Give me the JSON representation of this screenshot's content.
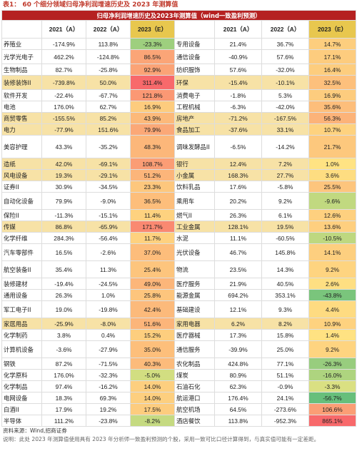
{
  "caption": "表1：  60 个细分领域归母净利润增速历史及 2023 年测算值",
  "table": {
    "title": "归母净利润增速历史及2023年测算值（wind一致盈利预测）",
    "headers": [
      "",
      "2021（A）",
      "2022（A）",
      "2023（E）",
      "",
      "2021（A）",
      "2022（A）",
      "2023（E）"
    ],
    "rows": [
      {
        "left": {
          "name": "养殖业",
          "a21": "-174.9%",
          "a22": "113.8%",
          "e23": "-23.3%"
        },
        "right": {
          "name": "专用设备",
          "a21": "21.4%",
          "a22": "36.7%",
          "e23": "14.7%"
        }
      },
      {
        "left": {
          "name": "光学光电子",
          "a21": "462.2%",
          "a22": "-124.8%",
          "e23": "86.5%"
        },
        "right": {
          "name": "通信设备",
          "a21": "-40.9%",
          "a22": "57.6%",
          "e23": "17.1%"
        }
      },
      {
        "left": {
          "name": "生物制品",
          "a21": "82.7%",
          "a22": "-25.8%",
          "e23": "92.9%"
        },
        "right": {
          "name": "纺织服饰",
          "a21": "57.6%",
          "a22": "-32.0%",
          "e23": "16.4%"
        }
      },
      {
        "left": {
          "name": "装修装饰II",
          "a21": "-739.8%",
          "a22": "50.0%",
          "e23": "311.4%"
        },
        "right": {
          "name": "环保",
          "a21": "-15.4%",
          "a22": "-10.1%",
          "e23": "32.5%"
        }
      },
      {
        "left": {
          "name": "软件开发",
          "a21": "-22.4%",
          "a22": "-67.7%",
          "e23": "121.8%"
        },
        "right": {
          "name": "消费电子",
          "a21": "-1.8%",
          "a22": "5.3%",
          "e23": "16.9%"
        }
      },
      {
        "left": {
          "name": "电池",
          "a21": "176.0%",
          "a22": "62.7%",
          "e23": "16.9%"
        },
        "right": {
          "name": "工程机械",
          "a21": "-6.3%",
          "a22": "-42.0%",
          "e23": "35.6%"
        }
      },
      {
        "left": {
          "name": "商贸零售",
          "a21": "-155.5%",
          "a22": "85.2%",
          "e23": "43.9%"
        },
        "right": {
          "name": "房地产",
          "a21": "-71.2%",
          "a22": "-167.5%",
          "e23": "56.3%"
        }
      },
      {
        "left": {
          "name": "电力",
          "a21": "-77.9%",
          "a22": "151.6%",
          "e23": "79.9%"
        },
        "right": {
          "name": "食品加工",
          "a21": "-37.6%",
          "a22": "33.1%",
          "e23": "10.7%"
        }
      },
      {
        "left": {
          "name": "美容护理",
          "a21": "43.3%",
          "a22": "-35.2%",
          "e23": "48.3%"
        },
        "right": {
          "name": "调味发酵品II",
          "a21": "-6.5%",
          "a22": "-14.2%",
          "e23": "21.7%"
        }
      },
      {
        "left": {
          "name": "造纸",
          "a21": "42.0%",
          "a22": "-69.1%",
          "e23": "108.7%"
        },
        "right": {
          "name": "银行",
          "a21": "12.4%",
          "a22": "7.2%",
          "e23": "1.0%"
        }
      },
      {
        "left": {
          "name": "风电设备",
          "a21": "19.3%",
          "a22": "-29.1%",
          "e23": "51.2%"
        },
        "right": {
          "name": "小金属",
          "a21": "168.3%",
          "a22": "27.7%",
          "e23": "3.6%"
        }
      },
      {
        "left": {
          "name": "证券II",
          "a21": "30.9%",
          "a22": "-34.5%",
          "e23": "23.3%"
        },
        "right": {
          "name": "饮料乳品",
          "a21": "17.6%",
          "a22": "-5.8%",
          "e23": "25.5%"
        }
      },
      {
        "left": {
          "name": "自动化设备",
          "a21": "79.9%",
          "a22": "-9.0%",
          "e23": "36.5%"
        },
        "right": {
          "name": "乘用车",
          "a21": "20.2%",
          "a22": "9.2%",
          "e23": "-9.6%"
        }
      },
      {
        "left": {
          "name": "保险II",
          "a21": "-11.3%",
          "a22": "-15.1%",
          "e23": "11.4%"
        },
        "right": {
          "name": "燃气II",
          "a21": "26.3%",
          "a22": "6.1%",
          "e23": "12.6%"
        }
      },
      {
        "left": {
          "name": "传媒",
          "a21": "86.8%",
          "a22": "-65.9%",
          "e23": "171.7%"
        },
        "right": {
          "name": "工业金属",
          "a21": "128.1%",
          "a22": "19.5%",
          "e23": "13.6%"
        }
      },
      {
        "left": {
          "name": "化学纤维",
          "a21": "284.3%",
          "a22": "-56.4%",
          "e23": "11.7%"
        },
        "right": {
          "name": "水泥",
          "a21": "11.1%",
          "a22": "-60.5%",
          "e23": "-10.5%"
        }
      },
      {
        "left": {
          "name": "汽车零部件",
          "a21": "16.5%",
          "a22": "-2.6%",
          "e23": "37.0%"
        },
        "right": {
          "name": "光伏设备",
          "a21": "46.7%",
          "a22": "145.8%",
          "e23": "14.1%"
        }
      },
      {
        "left": {
          "name": "航空装备II",
          "a21": "35.4%",
          "a22": "11.3%",
          "e23": "25.4%"
        },
        "right": {
          "name": "物流",
          "a21": "23.5%",
          "a22": "14.3%",
          "e23": "9.2%"
        }
      },
      {
        "left": {
          "name": "装修建材",
          "a21": "-19.4%",
          "a22": "-24.5%",
          "e23": "49.0%"
        },
        "right": {
          "name": "医疗服务",
          "a21": "21.9%",
          "a22": "40.5%",
          "e23": "2.6%"
        }
      },
      {
        "left": {
          "name": "通用设备",
          "a21": "26.3%",
          "a22": "1.0%",
          "e23": "25.8%"
        },
        "right": {
          "name": "能源金属",
          "a21": "694.2%",
          "a22": "353.1%",
          "e23": "-43.8%"
        }
      },
      {
        "left": {
          "name": "军工电子II",
          "a21": "19.0%",
          "a22": "-19.8%",
          "e23": "42.4%"
        },
        "right": {
          "name": "基础建设",
          "a21": "12.1%",
          "a22": "9.3%",
          "e23": "4.4%"
        }
      },
      {
        "left": {
          "name": "家居用品",
          "a21": "-25.9%",
          "a22": "-8.0%",
          "e23": "51.6%"
        },
        "right": {
          "name": "家用电器",
          "a21": "6.2%",
          "a22": "8.2%",
          "e23": "10.9%"
        }
      },
      {
        "left": {
          "name": "化学制药",
          "a21": "3.8%",
          "a22": "0.4%",
          "e23": "15.2%"
        },
        "right": {
          "name": "医疗器械",
          "a21": "17.3%",
          "a22": "15.8%",
          "e23": "1.4%"
        }
      },
      {
        "left": {
          "name": "计算机设备",
          "a21": "-3.6%",
          "a22": "-27.9%",
          "e23": "35.0%"
        },
        "right": {
          "name": "通信服务",
          "a21": "-39.9%",
          "a22": "25.0%",
          "e23": "9.2%"
        }
      },
      {
        "left": {
          "name": "钢铁",
          "a21": "87.2%",
          "a22": "-71.5%",
          "e23": "40.3%"
        },
        "right": {
          "name": "农化制品",
          "a21": "424.8%",
          "a22": "77.1%",
          "e23": "-26.3%"
        }
      },
      {
        "left": {
          "name": "化学原料",
          "a21": "176.0%",
          "a22": "-32.3%",
          "e23": "-5.0%"
        },
        "right": {
          "name": "煤炭",
          "a21": "80.9%",
          "a22": "51.1%",
          "e23": "-16.0%"
        }
      },
      {
        "left": {
          "name": "化学制品",
          "a21": "97.4%",
          "a22": "-16.2%",
          "e23": "14.0%"
        },
        "right": {
          "name": "石油石化",
          "a21": "62.3%",
          "a22": "-0.9%",
          "e23": "-3.3%"
        }
      },
      {
        "left": {
          "name": "电网设备",
          "a21": "18.3%",
          "a22": "69.3%",
          "e23": "14.0%"
        },
        "right": {
          "name": "航运港口",
          "a21": "176.4%",
          "a22": "24.1%",
          "e23": "-56.7%"
        }
      },
      {
        "left": {
          "name": "白酒II",
          "a21": "17.9%",
          "a22": "19.2%",
          "e23": "17.5%"
        },
        "right": {
          "name": "航空机场",
          "a21": "64.5%",
          "a22": "-273.6%",
          "e23": "106.6%"
        }
      },
      {
        "left": {
          "name": "半导体",
          "a21": "111.2%",
          "a22": "-23.8%",
          "e23": "-8.2%"
        },
        "right": {
          "name": "酒店餐饮",
          "a21": "113.8%",
          "a22": "-952.3%",
          "e23": "865.1%"
        }
      }
    ]
  },
  "source": "资料来源：Wind,招商证券",
  "note": "说明：此处 2023 年测算值使用具有 2023 年分析师一致盈利预测的个股，采用一致可比口径计算得到，与真实值可能有一定差距。",
  "colors": {
    "header_red": "#b52121",
    "highlight_yellow": "#f7e2a6",
    "header_2023": "#e8c74e",
    "scale_red": "#f8696b",
    "scale_yellow": "#ffeb84",
    "scale_green": "#63be7b"
  }
}
